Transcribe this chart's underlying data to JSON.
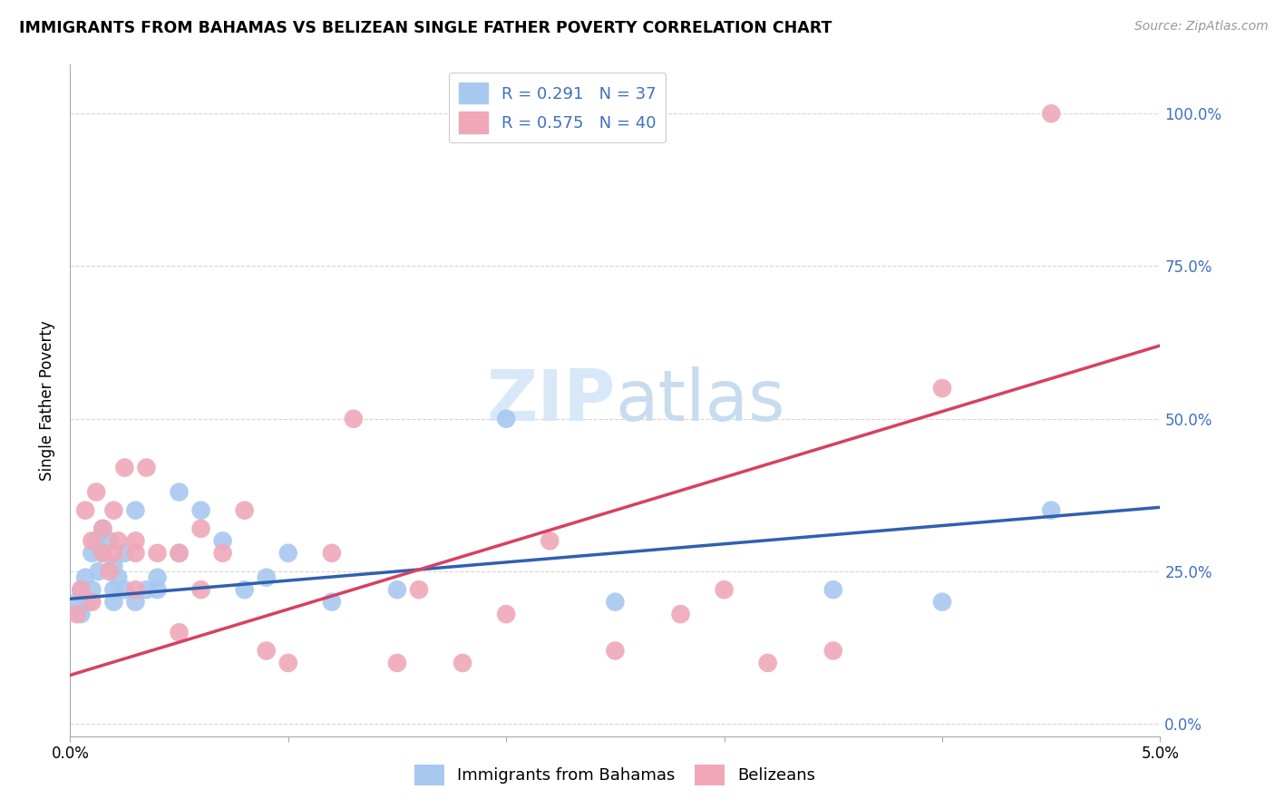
{
  "title": "IMMIGRANTS FROM BAHAMAS VS BELIZEAN SINGLE FATHER POVERTY CORRELATION CHART",
  "source": "Source: ZipAtlas.com",
  "ylabel": "Single Father Poverty",
  "right_yticks": [
    "0.0%",
    "25.0%",
    "50.0%",
    "75.0%",
    "100.0%"
  ],
  "right_ytick_vals": [
    0.0,
    0.25,
    0.5,
    0.75,
    1.0
  ],
  "legend_blue_r": "R = 0.291",
  "legend_blue_n": "N = 37",
  "legend_pink_r": "R = 0.575",
  "legend_pink_n": "N = 40",
  "legend_label_blue": "Immigrants from Bahamas",
  "legend_label_pink": "Belizeans",
  "blue_color": "#A8C8F0",
  "pink_color": "#F0A8B8",
  "blue_line_color": "#3060B0",
  "pink_line_color": "#D84060",
  "watermark_color": "#D8E8F8",
  "xlim": [
    0.0,
    0.05
  ],
  "ylim": [
    -0.02,
    1.08
  ],
  "blue_x": [
    0.0003,
    0.0005,
    0.0005,
    0.0007,
    0.0008,
    0.001,
    0.001,
    0.0012,
    0.0013,
    0.0015,
    0.0015,
    0.0018,
    0.002,
    0.002,
    0.002,
    0.0022,
    0.0025,
    0.0025,
    0.003,
    0.003,
    0.0035,
    0.004,
    0.004,
    0.005,
    0.005,
    0.006,
    0.007,
    0.008,
    0.009,
    0.01,
    0.012,
    0.015,
    0.02,
    0.025,
    0.035,
    0.04,
    0.045
  ],
  "blue_y": [
    0.2,
    0.22,
    0.18,
    0.24,
    0.2,
    0.28,
    0.22,
    0.3,
    0.25,
    0.28,
    0.32,
    0.3,
    0.22,
    0.2,
    0.26,
    0.24,
    0.28,
    0.22,
    0.35,
    0.2,
    0.22,
    0.24,
    0.22,
    0.28,
    0.38,
    0.35,
    0.3,
    0.22,
    0.24,
    0.28,
    0.2,
    0.22,
    0.5,
    0.2,
    0.22,
    0.2,
    0.35
  ],
  "pink_x": [
    0.0003,
    0.0005,
    0.0007,
    0.001,
    0.001,
    0.0012,
    0.0015,
    0.0015,
    0.0018,
    0.002,
    0.002,
    0.0022,
    0.0025,
    0.003,
    0.003,
    0.003,
    0.0035,
    0.004,
    0.005,
    0.005,
    0.006,
    0.006,
    0.007,
    0.008,
    0.009,
    0.01,
    0.012,
    0.013,
    0.015,
    0.016,
    0.018,
    0.02,
    0.022,
    0.025,
    0.028,
    0.03,
    0.032,
    0.035,
    0.04,
    0.045
  ],
  "pink_y": [
    0.18,
    0.22,
    0.35,
    0.3,
    0.2,
    0.38,
    0.28,
    0.32,
    0.25,
    0.28,
    0.35,
    0.3,
    0.42,
    0.28,
    0.22,
    0.3,
    0.42,
    0.28,
    0.15,
    0.28,
    0.22,
    0.32,
    0.28,
    0.35,
    0.12,
    0.1,
    0.28,
    0.5,
    0.1,
    0.22,
    0.1,
    0.18,
    0.3,
    0.12,
    0.18,
    0.22,
    0.1,
    0.12,
    0.55,
    1.0
  ],
  "blue_line_x": [
    0.0,
    0.05
  ],
  "blue_line_y": [
    0.205,
    0.355
  ],
  "pink_line_x": [
    0.0,
    0.05
  ],
  "pink_line_y": [
    0.08,
    0.62
  ]
}
